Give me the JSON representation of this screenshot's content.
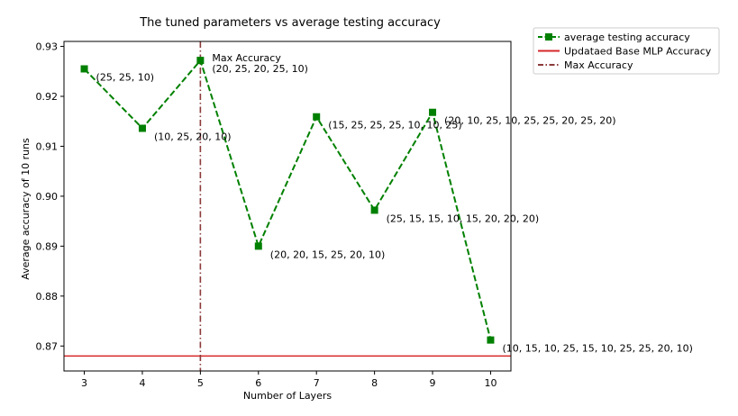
{
  "chart_data": {
    "type": "line",
    "title": "The tuned parameters vs average testing accuracy",
    "xlabel": "Number of Layers",
    "ylabel": "Average accuracy of 10 runs",
    "xlim": [
      2.65,
      10.35
    ],
    "ylim": [
      0.865,
      0.931
    ],
    "xticks": [
      3,
      4,
      5,
      6,
      7,
      8,
      9,
      10
    ],
    "yticks": [
      0.87,
      0.88,
      0.89,
      0.9,
      0.91,
      0.92,
      0.93
    ],
    "ytick_labels": [
      "0.87",
      "0.88",
      "0.89",
      "0.90",
      "0.91",
      "0.92",
      "0.93"
    ],
    "grid": false,
    "legend_position": "outside-top-right",
    "series": [
      {
        "name": "average testing accuracy",
        "color": "#008000",
        "style": "dashed-with-square-markers",
        "x": [
          3,
          4,
          5,
          6,
          7,
          8,
          9,
          10
        ],
        "y": [
          0.9255,
          0.9136,
          0.9272,
          0.89,
          0.9159,
          0.8972,
          0.9168,
          0.8712
        ]
      }
    ],
    "reference_lines": [
      {
        "name": "Updataed Base MLP Accuracy",
        "orientation": "horizontal",
        "value": 0.868,
        "color": "#d62728",
        "style": "solid"
      },
      {
        "name": " Max Accuracy",
        "orientation": "vertical",
        "value": 5,
        "color": "#8c3a3a",
        "style": "dashdot"
      }
    ],
    "annotations": [
      {
        "x": 3,
        "y": 0.9255,
        "lines": [
          "(25, 25, 10)"
        ]
      },
      {
        "x": 4,
        "y": 0.9136,
        "lines": [
          "(10, 25, 20, 10)"
        ]
      },
      {
        "x": 5,
        "y": 0.9272,
        "lines": [
          " Max Accuracy",
          "(20, 25, 20, 25, 10)"
        ]
      },
      {
        "x": 6,
        "y": 0.89,
        "lines": [
          "(20, 20, 15, 25, 20, 10)"
        ]
      },
      {
        "x": 7,
        "y": 0.9159,
        "lines": [
          "(15, 25, 25, 25, 10, 10, 25)"
        ]
      },
      {
        "x": 8,
        "y": 0.8972,
        "lines": [
          "(25, 15, 15, 10, 15, 20, 20, 20)"
        ]
      },
      {
        "x": 9,
        "y": 0.9168,
        "lines": [
          "(20, 10, 25, 10, 25, 25, 20, 25, 20)"
        ]
      },
      {
        "x": 10,
        "y": 0.8712,
        "lines": [
          "(10, 15, 10, 25, 15, 10, 25, 25, 20, 10)"
        ]
      }
    ]
  }
}
